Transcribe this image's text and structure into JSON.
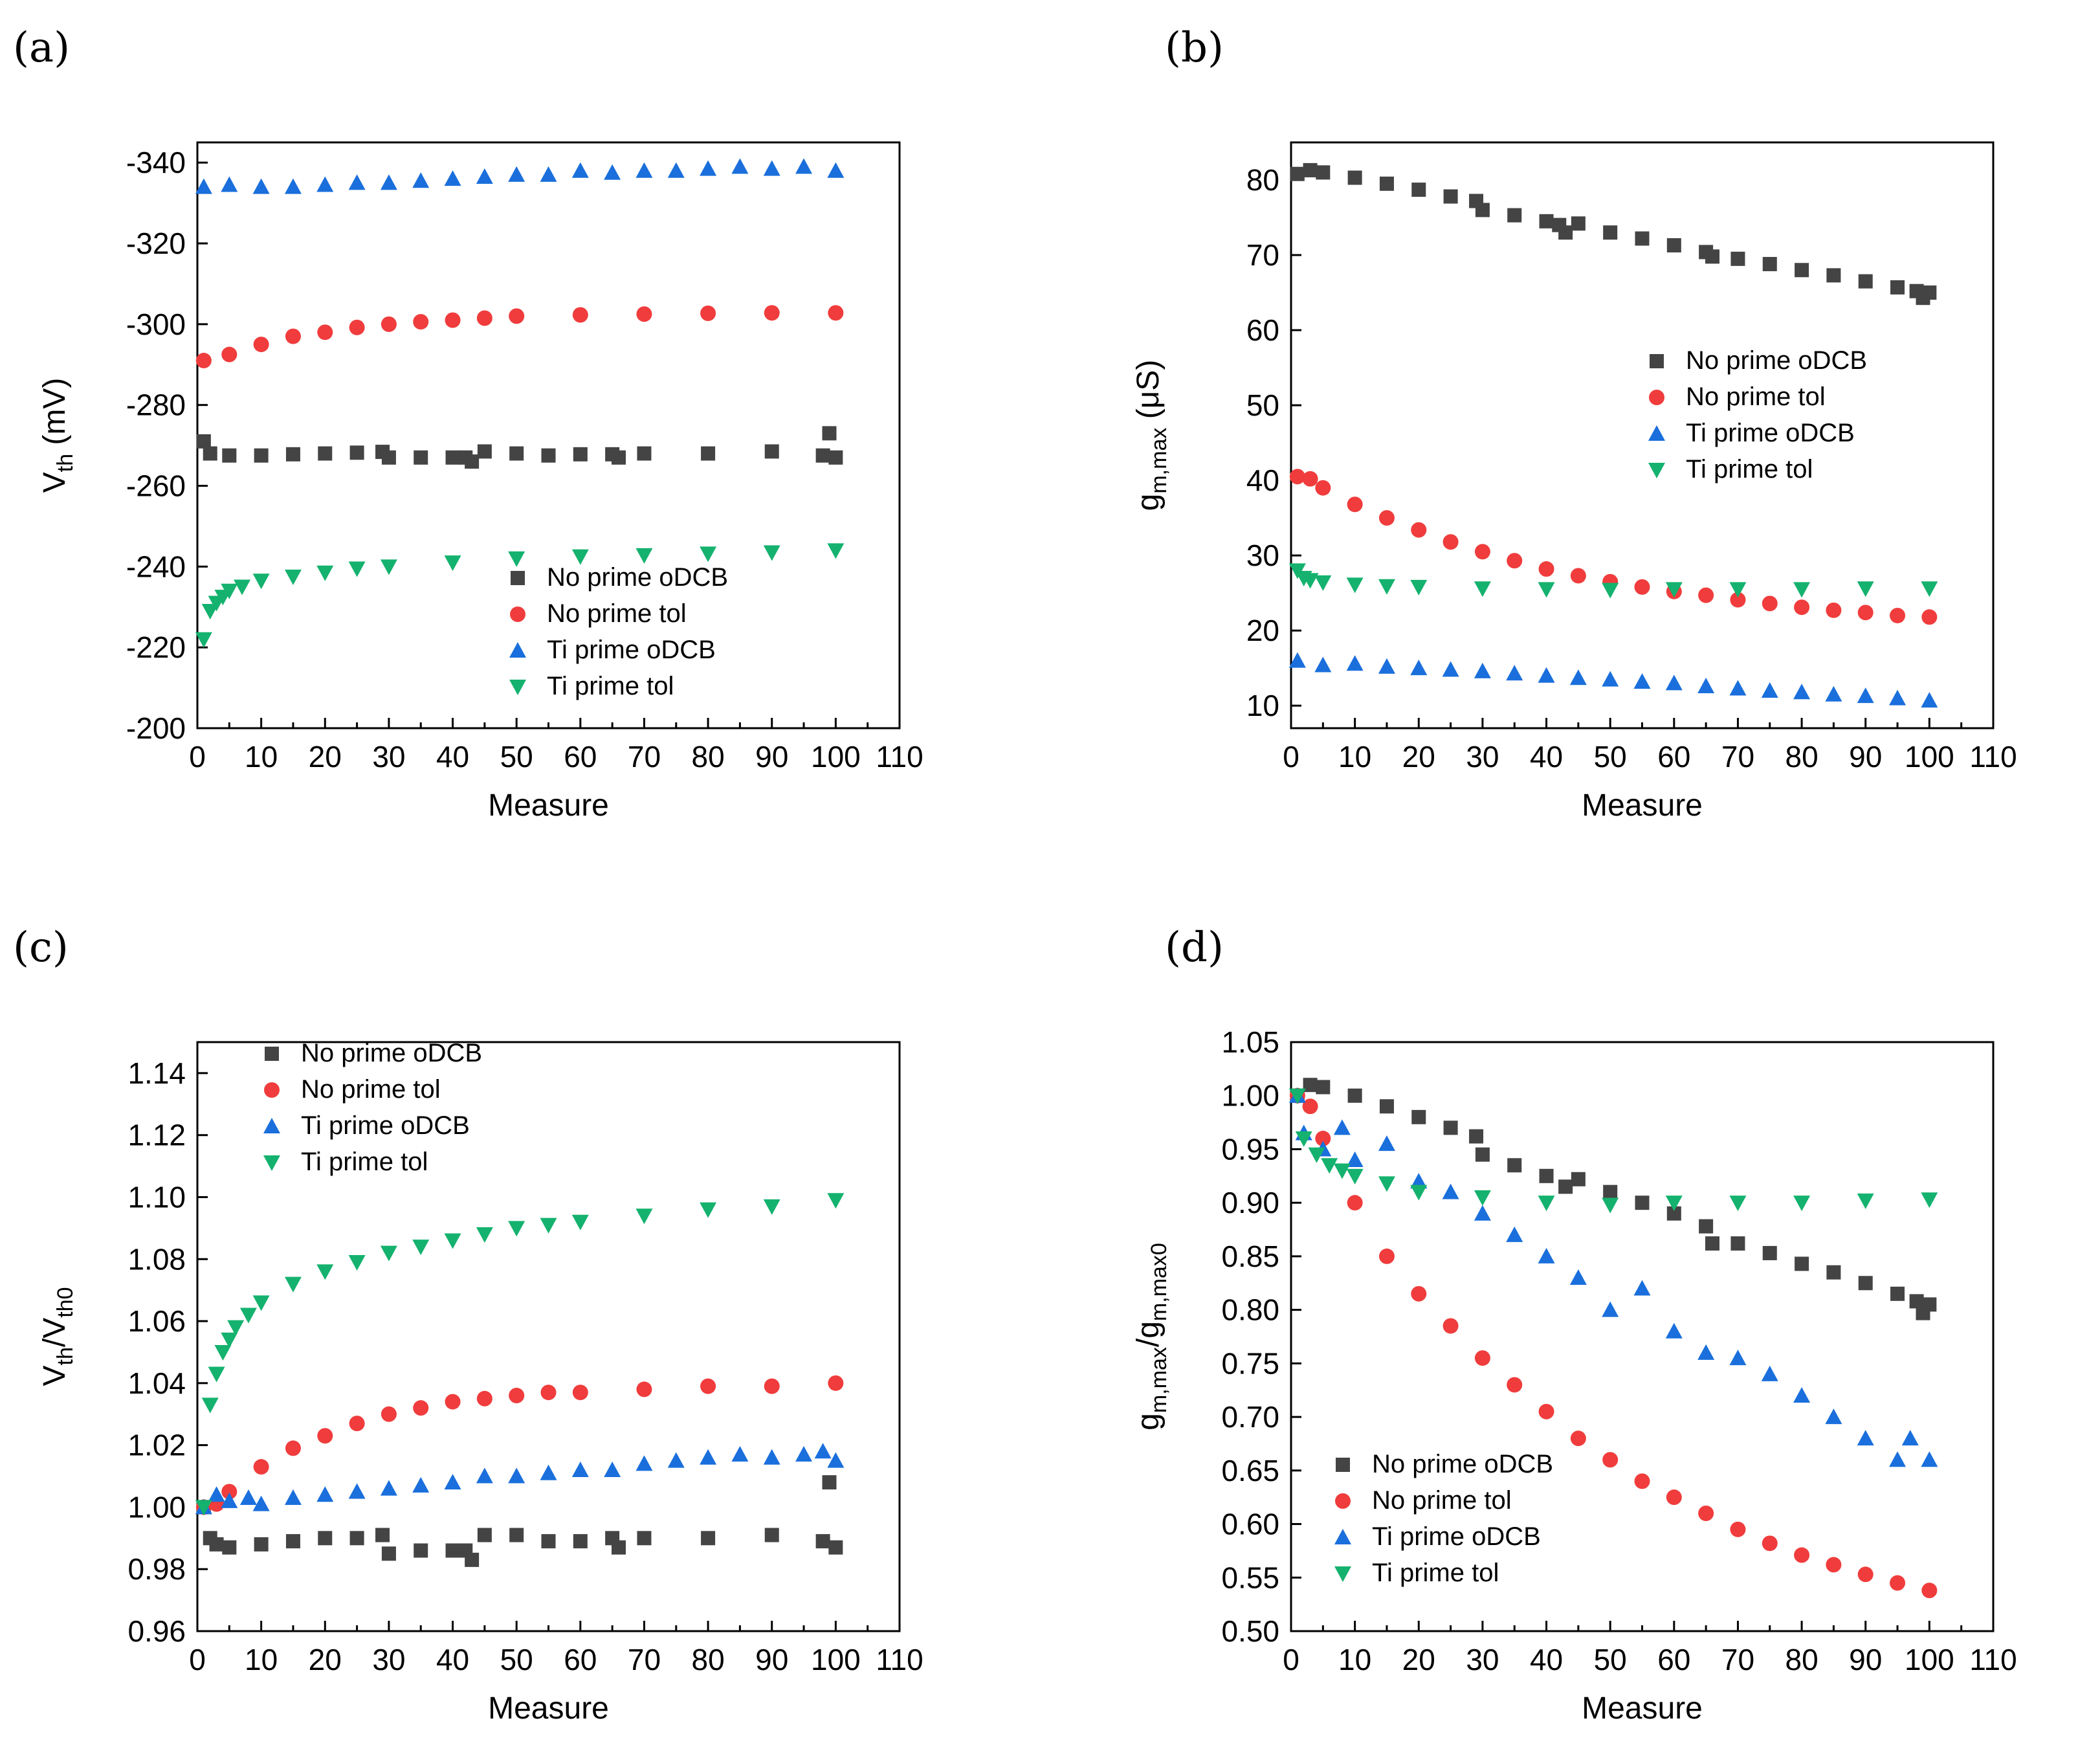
{
  "colors": {
    "No prime oDCB": "#444444",
    "No prime tol": "#f03c3c",
    "Ti prime oDCB": "#1a6fdc",
    "Ti prime tol": "#14b26e"
  },
  "chart_data": [
    {
      "panel": "(a)",
      "type": "scatter",
      "xlabel": "Measure",
      "ylabel": "V",
      "ylabel_sub": "th",
      "ylabel_suffix": " (mV)",
      "xlim": [
        0,
        110
      ],
      "ylim": [
        -200,
        -345
      ],
      "xticks": [
        0,
        10,
        20,
        30,
        40,
        50,
        60,
        70,
        80,
        90,
        100,
        110
      ],
      "yticks": [
        -200,
        -220,
        -240,
        -260,
        -280,
        -300,
        -320,
        -340
      ],
      "legend_loc": "lower-center",
      "series": [
        {
          "name": "No prime oDCB",
          "marker": "square",
          "x": [
            1,
            2,
            5,
            10,
            15,
            20,
            25,
            29,
            30,
            35,
            40,
            42,
            43,
            45,
            50,
            55,
            60,
            65,
            66,
            70,
            80,
            90,
            98,
            99,
            100
          ],
          "y": [
            -271,
            -268,
            -267.5,
            -267.5,
            -267.8,
            -268,
            -268.2,
            -268.4,
            -267,
            -267,
            -267,
            -267,
            -266,
            -268.5,
            -268,
            -267.5,
            -267.8,
            -267.8,
            -267,
            -268,
            -268,
            -268.5,
            -267.5,
            -273,
            -267
          ]
        },
        {
          "name": "No prime tol",
          "marker": "circle",
          "x": [
            1,
            5,
            10,
            15,
            20,
            25,
            30,
            35,
            40,
            45,
            50,
            60,
            70,
            80,
            90,
            100
          ],
          "y": [
            -291,
            -292.5,
            -295,
            -297,
            -298,
            -299.2,
            -300,
            -300.6,
            -301,
            -301.5,
            -302,
            -302.3,
            -302.5,
            -302.7,
            -302.8,
            -302.8
          ]
        },
        {
          "name": "Ti prime oDCB",
          "marker": "triangle-up",
          "x": [
            1,
            5,
            10,
            15,
            20,
            25,
            30,
            35,
            40,
            45,
            50,
            55,
            60,
            65,
            70,
            75,
            80,
            85,
            90,
            95,
            100
          ],
          "y": [
            -334,
            -334.5,
            -334,
            -334,
            -334.5,
            -335,
            -335,
            -335.5,
            -336,
            -336.5,
            -337,
            -337,
            -338,
            -337.5,
            -338,
            -338,
            -338.5,
            -339,
            -338.5,
            -339,
            -338
          ]
        },
        {
          "name": "Ti prime tol",
          "marker": "triangle-down",
          "x": [
            1,
            2,
            3,
            4,
            5,
            7,
            10,
            15,
            20,
            25,
            30,
            40,
            50,
            60,
            70,
            80,
            90,
            100
          ],
          "y": [
            -222,
            -229,
            -231,
            -232.5,
            -234,
            -235,
            -236.5,
            -237.5,
            -238.5,
            -239.5,
            -240,
            -241,
            -242,
            -242.5,
            -242.8,
            -243.2,
            -243.5,
            -244
          ]
        }
      ],
      "legend": [
        "No prime oDCB",
        "No prime tol",
        "Ti prime oDCB",
        "Ti prime tol"
      ]
    },
    {
      "panel": "(b)",
      "type": "scatter",
      "xlabel": "Measure",
      "ylabel": "g",
      "ylabel_sub": "m,max",
      "ylabel_suffix": " (μS)",
      "xlim": [
        0,
        110
      ],
      "ylim": [
        7,
        85
      ],
      "xticks": [
        0,
        10,
        20,
        30,
        40,
        50,
        60,
        70,
        80,
        90,
        100,
        110
      ],
      "yticks": [
        10,
        20,
        30,
        40,
        50,
        60,
        70,
        80
      ],
      "legend_loc": "center-right",
      "series": [
        {
          "name": "No prime oDCB",
          "marker": "square",
          "x": [
            1,
            3,
            5,
            10,
            15,
            20,
            25,
            29,
            30,
            35,
            40,
            42,
            43,
            45,
            50,
            55,
            60,
            65,
            66,
            70,
            75,
            80,
            85,
            90,
            95,
            98,
            99,
            100
          ],
          "y": [
            80.8,
            81.3,
            81,
            80.3,
            79.5,
            78.7,
            77.8,
            77.2,
            76,
            75.3,
            74.5,
            74,
            73,
            74.2,
            73,
            72.2,
            71.3,
            70.4,
            69.8,
            69.5,
            68.8,
            68,
            67.3,
            66.5,
            65.7,
            65.2,
            64.3,
            65
          ]
        },
        {
          "name": "No prime tol",
          "marker": "circle",
          "x": [
            1,
            3,
            5,
            10,
            15,
            20,
            25,
            30,
            35,
            40,
            45,
            50,
            55,
            60,
            65,
            70,
            75,
            80,
            85,
            90,
            95,
            100
          ],
          "y": [
            40.5,
            40.2,
            39,
            36.8,
            35,
            33.4,
            31.8,
            30.5,
            29.3,
            28.2,
            27.3,
            26.5,
            25.8,
            25.2,
            24.7,
            24.1,
            23.6,
            23.1,
            22.7,
            22.4,
            22,
            21.8
          ]
        },
        {
          "name": "Ti prime oDCB",
          "marker": "triangle-up",
          "x": [
            1,
            5,
            10,
            15,
            20,
            25,
            30,
            35,
            40,
            45,
            50,
            55,
            60,
            65,
            70,
            75,
            80,
            85,
            90,
            95,
            100
          ],
          "y": [
            16,
            15.4,
            15.6,
            15.2,
            15,
            14.8,
            14.6,
            14.3,
            14,
            13.7,
            13.5,
            13.2,
            13,
            12.6,
            12.3,
            12,
            11.8,
            11.5,
            11.3,
            11,
            10.7
          ]
        },
        {
          "name": "Ti prime tol",
          "marker": "triangle-down",
          "x": [
            1,
            2,
            3,
            5,
            10,
            15,
            20,
            30,
            40,
            50,
            60,
            70,
            80,
            90,
            100
          ],
          "y": [
            28,
            27,
            26.7,
            26.4,
            26.1,
            25.9,
            25.8,
            25.6,
            25.5,
            25.4,
            25.5,
            25.5,
            25.5,
            25.6,
            25.6
          ]
        }
      ],
      "legend": [
        "No prime oDCB",
        "No prime tol",
        "Ti prime oDCB",
        "Ti prime tol"
      ]
    },
    {
      "panel": "(c)",
      "type": "scatter",
      "xlabel": "Measure",
      "ylabel": "V",
      "ylabel_sub": "th",
      "ylabel_mid": "/V",
      "ylabel_sub2": "th0",
      "xlim": [
        0,
        110
      ],
      "ylim": [
        0.96,
        1.15
      ],
      "xticks": [
        0,
        10,
        20,
        30,
        40,
        50,
        60,
        70,
        80,
        90,
        100,
        110
      ],
      "yticks": [
        "0.96",
        "0.98",
        "1.00",
        "1.02",
        "1.04",
        "1.06",
        "1.08",
        "1.10",
        "1.12",
        "1.14"
      ],
      "legend_loc": "top-left",
      "series": [
        {
          "name": "No prime oDCB",
          "marker": "square",
          "x": [
            1,
            2,
            3,
            5,
            10,
            15,
            20,
            25,
            29,
            30,
            35,
            40,
            42,
            43,
            45,
            50,
            55,
            60,
            65,
            66,
            70,
            80,
            90,
            98,
            99,
            100
          ],
          "y": [
            1.0,
            0.99,
            0.988,
            0.987,
            0.988,
            0.989,
            0.99,
            0.99,
            0.991,
            0.985,
            0.986,
            0.986,
            0.986,
            0.983,
            0.991,
            0.991,
            0.989,
            0.989,
            0.99,
            0.987,
            0.99,
            0.99,
            0.991,
            0.989,
            1.008,
            0.987
          ]
        },
        {
          "name": "No prime tol",
          "marker": "circle",
          "x": [
            1,
            3,
            5,
            10,
            15,
            20,
            25,
            30,
            35,
            40,
            45,
            50,
            55,
            60,
            70,
            80,
            90,
            100
          ],
          "y": [
            1.0,
            1.001,
            1.005,
            1.013,
            1.019,
            1.023,
            1.027,
            1.03,
            1.032,
            1.034,
            1.035,
            1.036,
            1.037,
            1.037,
            1.038,
            1.039,
            1.039,
            1.04
          ]
        },
        {
          "name": "Ti prime oDCB",
          "marker": "triangle-up",
          "x": [
            1,
            3,
            5,
            8,
            10,
            15,
            20,
            25,
            30,
            35,
            40,
            45,
            50,
            55,
            60,
            65,
            70,
            75,
            80,
            85,
            90,
            95,
            98,
            100
          ],
          "y": [
            1.0,
            1.004,
            1.002,
            1.003,
            1.001,
            1.003,
            1.004,
            1.005,
            1.006,
            1.007,
            1.008,
            1.01,
            1.01,
            1.011,
            1.012,
            1.012,
            1.014,
            1.015,
            1.016,
            1.017,
            1.016,
            1.017,
            1.018,
            1.015
          ]
        },
        {
          "name": "Ti prime tol",
          "marker": "triangle-down",
          "x": [
            1,
            2,
            3,
            4,
            5,
            6,
            8,
            10,
            15,
            20,
            25,
            30,
            35,
            40,
            45,
            50,
            55,
            60,
            70,
            80,
            90,
            100
          ],
          "y": [
            1.0,
            1.033,
            1.043,
            1.05,
            1.054,
            1.058,
            1.062,
            1.066,
            1.072,
            1.076,
            1.079,
            1.082,
            1.084,
            1.086,
            1.088,
            1.09,
            1.091,
            1.092,
            1.094,
            1.096,
            1.097,
            1.099
          ]
        }
      ],
      "legend": [
        "No prime oDCB",
        "No prime tol",
        "Ti prime oDCB",
        "Ti prime tol"
      ]
    },
    {
      "panel": "(d)",
      "type": "scatter",
      "xlabel": "Measure",
      "ylabel": "g",
      "ylabel_sub": "m,max",
      "ylabel_mid": "/g",
      "ylabel_sub2": "m,max0",
      "xlim": [
        0,
        110
      ],
      "ylim": [
        0.5,
        1.05
      ],
      "xticks": [
        0,
        10,
        20,
        30,
        40,
        50,
        60,
        70,
        80,
        90,
        100,
        110
      ],
      "yticks": [
        "0.50",
        "0.55",
        "0.60",
        "0.65",
        "0.70",
        "0.75",
        "0.80",
        "0.85",
        "0.90",
        "0.95",
        "1.00",
        "1.05"
      ],
      "legend_loc": "lower-left",
      "series": [
        {
          "name": "No prime oDCB",
          "marker": "square",
          "x": [
            1,
            3,
            5,
            10,
            15,
            20,
            25,
            29,
            30,
            35,
            40,
            43,
            45,
            50,
            55,
            60,
            65,
            66,
            70,
            75,
            80,
            85,
            90,
            95,
            98,
            99,
            100
          ],
          "y": [
            1.0,
            1.01,
            1.008,
            1.0,
            0.99,
            0.98,
            0.97,
            0.962,
            0.945,
            0.935,
            0.925,
            0.915,
            0.922,
            0.91,
            0.9,
            0.89,
            0.878,
            0.862,
            0.862,
            0.853,
            0.843,
            0.835,
            0.825,
            0.815,
            0.808,
            0.797,
            0.805
          ]
        },
        {
          "name": "No prime tol",
          "marker": "circle",
          "x": [
            1,
            3,
            5,
            10,
            15,
            20,
            25,
            30,
            35,
            40,
            45,
            50,
            55,
            60,
            65,
            70,
            75,
            80,
            85,
            90,
            95,
            100
          ],
          "y": [
            1.0,
            0.99,
            0.96,
            0.9,
            0.85,
            0.815,
            0.785,
            0.755,
            0.73,
            0.705,
            0.68,
            0.66,
            0.64,
            0.625,
            0.61,
            0.595,
            0.582,
            0.571,
            0.562,
            0.553,
            0.545,
            0.538
          ]
        },
        {
          "name": "Ti prime oDCB",
          "marker": "triangle-up",
          "x": [
            1,
            2,
            5,
            8,
            10,
            15,
            20,
            25,
            30,
            35,
            40,
            45,
            50,
            55,
            60,
            65,
            70,
            75,
            80,
            85,
            90,
            95,
            97,
            100
          ],
          "y": [
            1.0,
            0.965,
            0.95,
            0.97,
            0.94,
            0.955,
            0.92,
            0.91,
            0.89,
            0.87,
            0.85,
            0.83,
            0.8,
            0.82,
            0.78,
            0.76,
            0.755,
            0.74,
            0.72,
            0.7,
            0.68,
            0.66,
            0.68,
            0.66
          ]
        },
        {
          "name": "Ti prime tol",
          "marker": "triangle-down",
          "x": [
            1,
            2,
            4,
            6,
            8,
            10,
            15,
            20,
            30,
            40,
            50,
            60,
            70,
            80,
            90,
            100
          ],
          "y": [
            1.0,
            0.96,
            0.945,
            0.935,
            0.93,
            0.925,
            0.918,
            0.91,
            0.905,
            0.9,
            0.898,
            0.9,
            0.9,
            0.9,
            0.902,
            0.903
          ]
        }
      ],
      "legend": [
        "No prime oDCB",
        "No prime tol",
        "Ti prime oDCB",
        "Ti prime tol"
      ]
    }
  ]
}
